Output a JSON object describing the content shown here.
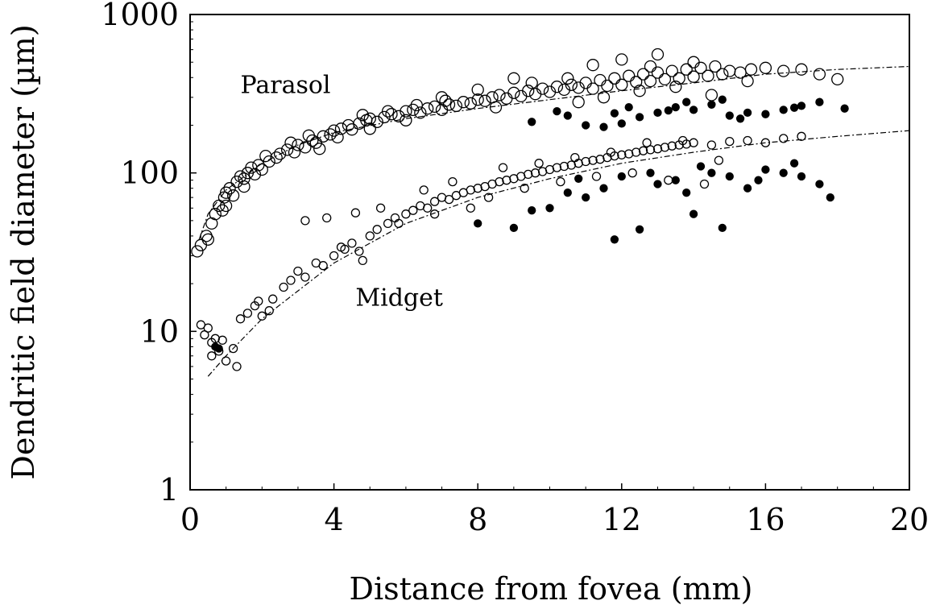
{
  "chart_data": {
    "type": "scatter",
    "title": "",
    "xlabel": "Distance from fovea (mm)",
    "ylabel": "Dendritic field diameter (µm)",
    "xlim": [
      0,
      20
    ],
    "ylim": [
      1,
      1000
    ],
    "yscale": "log",
    "grid": false,
    "legend": "none",
    "x_ticks": [
      0,
      4,
      8,
      12,
      16,
      20
    ],
    "x_tick_labels": [
      "0",
      "4",
      "8",
      "12",
      "16",
      "20"
    ],
    "y_ticks": [
      1,
      10,
      100,
      1000
    ],
    "y_tick_labels": [
      "1",
      "10",
      "100",
      "1000"
    ],
    "annotations": [
      {
        "text": "Parasol",
        "x": 1.4,
        "y": 320
      },
      {
        "text": "Midget",
        "x": 4.6,
        "y": 14.5
      }
    ],
    "series": [
      {
        "name": "Parasol",
        "marker": "open-circle",
        "points": [
          [
            0.2,
            32
          ],
          [
            0.3,
            35
          ],
          [
            0.45,
            40
          ],
          [
            0.5,
            38
          ],
          [
            0.6,
            48
          ],
          [
            0.7,
            55
          ],
          [
            0.8,
            62
          ],
          [
            0.9,
            58
          ],
          [
            0.95,
            70
          ],
          [
            1.0,
            75
          ],
          [
            1.1,
            80
          ],
          [
            1.2,
            72
          ],
          [
            1.3,
            88
          ],
          [
            1.4,
            95
          ],
          [
            1.5,
            92
          ],
          [
            1.6,
            100
          ],
          [
            1.7,
            108
          ],
          [
            1.8,
            98
          ],
          [
            1.9,
            112
          ],
          [
            2.0,
            105
          ],
          [
            2.2,
            118
          ],
          [
            2.4,
            125
          ],
          [
            2.5,
            132
          ],
          [
            2.7,
            140
          ],
          [
            2.9,
            135
          ],
          [
            3.0,
            150
          ],
          [
            3.2,
            145
          ],
          [
            3.4,
            160
          ],
          [
            3.5,
            155
          ],
          [
            3.7,
            170
          ],
          [
            3.9,
            175
          ],
          [
            4.0,
            185
          ],
          [
            4.2,
            190
          ],
          [
            4.4,
            200
          ],
          [
            4.5,
            188
          ],
          [
            4.7,
            205
          ],
          [
            4.9,
            215
          ],
          [
            5.0,
            220
          ],
          [
            5.2,
            210
          ],
          [
            5.4,
            225
          ],
          [
            5.6,
            235
          ],
          [
            5.8,
            228
          ],
          [
            6.0,
            245
          ],
          [
            6.2,
            250
          ],
          [
            6.4,
            240
          ],
          [
            6.6,
            255
          ],
          [
            6.8,
            262
          ],
          [
            7.0,
            250
          ],
          [
            7.2,
            270
          ],
          [
            7.4,
            265
          ],
          [
            7.6,
            280
          ],
          [
            7.8,
            275
          ],
          [
            8.0,
            290
          ],
          [
            8.2,
            285
          ],
          [
            8.4,
            300
          ],
          [
            8.6,
            310
          ],
          [
            8.8,
            295
          ],
          [
            9.0,
            320
          ],
          [
            9.2,
            305
          ],
          [
            9.4,
            330
          ],
          [
            9.6,
            315
          ],
          [
            9.8,
            340
          ],
          [
            10.0,
            325
          ],
          [
            10.2,
            350
          ],
          [
            10.4,
            335
          ],
          [
            10.6,
            360
          ],
          [
            10.8,
            345
          ],
          [
            11.0,
            370
          ],
          [
            11.2,
            340
          ],
          [
            11.4,
            385
          ],
          [
            11.6,
            355
          ],
          [
            11.8,
            395
          ],
          [
            12.0,
            360
          ],
          [
            12.2,
            410
          ],
          [
            12.4,
            375
          ],
          [
            12.6,
            420
          ],
          [
            12.8,
            380
          ],
          [
            13.0,
            430
          ],
          [
            13.2,
            390
          ],
          [
            13.4,
            440
          ],
          [
            13.6,
            395
          ],
          [
            13.8,
            450
          ],
          [
            14.0,
            405
          ],
          [
            14.2,
            460
          ],
          [
            14.4,
            410
          ],
          [
            14.6,
            470
          ],
          [
            14.8,
            420
          ],
          [
            15.0,
            440
          ],
          [
            15.3,
            430
          ],
          [
            15.6,
            450
          ],
          [
            16.0,
            460
          ],
          [
            16.5,
            440
          ],
          [
            17.0,
            450
          ],
          [
            17.5,
            420
          ],
          [
            18.0,
            390
          ],
          [
            1.0,
            62
          ],
          [
            1.5,
            82
          ],
          [
            2.1,
            128
          ],
          [
            2.8,
            155
          ],
          [
            3.3,
            172
          ],
          [
            4.1,
            168
          ],
          [
            4.8,
            232
          ],
          [
            5.5,
            245
          ],
          [
            6.3,
            268
          ],
          [
            7.1,
            285
          ],
          [
            8.5,
            260
          ],
          [
            9.5,
            370
          ],
          [
            10.5,
            395
          ],
          [
            11.5,
            300
          ],
          [
            12.5,
            330
          ],
          [
            13.5,
            350
          ],
          [
            14.5,
            310
          ],
          [
            15.5,
            380
          ],
          [
            10.8,
            280
          ],
          [
            12.0,
            520
          ],
          [
            13.0,
            560
          ],
          [
            11.2,
            480
          ],
          [
            12.8,
            470
          ],
          [
            14.0,
            500
          ],
          [
            9.0,
            395
          ],
          [
            8.0,
            335
          ],
          [
            7.0,
            300
          ],
          [
            6.0,
            215
          ],
          [
            5.0,
            190
          ],
          [
            3.6,
            142
          ]
        ]
      },
      {
        "name": "Parasol (filled)",
        "marker": "filled-circle",
        "points": [
          [
            9.5,
            210
          ],
          [
            10.5,
            230
          ],
          [
            11.0,
            200
          ],
          [
            11.5,
            195
          ],
          [
            12.0,
            205
          ],
          [
            12.5,
            225
          ],
          [
            13.0,
            240
          ],
          [
            13.5,
            260
          ],
          [
            14.0,
            250
          ],
          [
            14.5,
            270
          ],
          [
            15.0,
            230
          ],
          [
            15.5,
            240
          ],
          [
            16.0,
            235
          ],
          [
            16.5,
            250
          ],
          [
            17.0,
            265
          ],
          [
            17.5,
            280
          ],
          [
            18.2,
            255
          ],
          [
            10.2,
            245
          ],
          [
            12.2,
            260
          ],
          [
            13.8,
            280
          ],
          [
            14.8,
            290
          ],
          [
            15.3,
            220
          ],
          [
            16.8,
            258
          ],
          [
            11.8,
            238
          ],
          [
            13.3,
            248
          ]
        ]
      },
      {
        "name": "Midget",
        "marker": "open-circle",
        "points": [
          [
            0.4,
            9.5
          ],
          [
            0.5,
            10.5
          ],
          [
            0.6,
            8.5
          ],
          [
            0.7,
            9.0
          ],
          [
            0.8,
            7.5
          ],
          [
            0.9,
            8.8
          ],
          [
            1.0,
            6.5
          ],
          [
            1.2,
            7.8
          ],
          [
            1.4,
            12.0
          ],
          [
            1.6,
            13.0
          ],
          [
            1.8,
            14.5
          ],
          [
            2.0,
            12.5
          ],
          [
            2.3,
            16.0
          ],
          [
            2.6,
            19.0
          ],
          [
            2.8,
            21.0
          ],
          [
            3.0,
            24.0
          ],
          [
            3.2,
            22.0
          ],
          [
            3.5,
            27.0
          ],
          [
            3.7,
            26.0
          ],
          [
            4.0,
            30.0
          ],
          [
            4.3,
            33.0
          ],
          [
            4.5,
            36.0
          ],
          [
            4.7,
            32.0
          ],
          [
            5.0,
            40.0
          ],
          [
            5.2,
            44.0
          ],
          [
            5.5,
            48.0
          ],
          [
            5.7,
            52.0
          ],
          [
            6.0,
            55.0
          ],
          [
            6.2,
            58.0
          ],
          [
            6.4,
            62.0
          ],
          [
            6.6,
            60.0
          ],
          [
            6.8,
            66.0
          ],
          [
            7.0,
            70.0
          ],
          [
            7.2,
            68.0
          ],
          [
            7.4,
            72.0
          ],
          [
            7.6,
            75.0
          ],
          [
            7.8,
            78.0
          ],
          [
            8.0,
            80.0
          ],
          [
            8.2,
            82.0
          ],
          [
            8.4,
            85.0
          ],
          [
            8.6,
            88.0
          ],
          [
            8.8,
            90.0
          ],
          [
            9.0,
            92.0
          ],
          [
            9.2,
            95.0
          ],
          [
            9.4,
            98.0
          ],
          [
            9.6,
            100.0
          ],
          [
            9.8,
            102.0
          ],
          [
            10.0,
            105.0
          ],
          [
            10.2,
            108.0
          ],
          [
            10.4,
            110.0
          ],
          [
            10.6,
            112.0
          ],
          [
            10.8,
            115.0
          ],
          [
            11.0,
            118.0
          ],
          [
            11.2,
            120.0
          ],
          [
            11.4,
            122.0
          ],
          [
            11.6,
            125.0
          ],
          [
            11.8,
            128.0
          ],
          [
            12.0,
            130.0
          ],
          [
            12.2,
            132.0
          ],
          [
            12.4,
            135.0
          ],
          [
            12.6,
            138.0
          ],
          [
            12.8,
            140.0
          ],
          [
            13.0,
            142.0
          ],
          [
            13.2,
            145.0
          ],
          [
            13.4,
            148.0
          ],
          [
            13.6,
            150.0
          ],
          [
            13.8,
            152.0
          ],
          [
            14.0,
            155.0
          ],
          [
            14.5,
            150.0
          ],
          [
            15.0,
            158.0
          ],
          [
            15.5,
            160.0
          ],
          [
            16.0,
            155.0
          ],
          [
            16.5,
            165.0
          ],
          [
            17.0,
            170.0
          ],
          [
            3.2,
            50.0
          ],
          [
            3.8,
            52.0
          ],
          [
            4.6,
            56.0
          ],
          [
            5.3,
            60.0
          ],
          [
            6.5,
            78.0
          ],
          [
            7.3,
            88.0
          ],
          [
            8.7,
            108.0
          ],
          [
            9.7,
            115.0
          ],
          [
            10.7,
            125.0
          ],
          [
            11.7,
            135.0
          ],
          [
            12.7,
            155.0
          ],
          [
            13.7,
            160.0
          ],
          [
            14.7,
            120.0
          ],
          [
            9.3,
            80.0
          ],
          [
            10.3,
            88.0
          ],
          [
            11.3,
            95.0
          ],
          [
            12.3,
            100.0
          ],
          [
            13.3,
            90.0
          ],
          [
            14.3,
            85.0
          ],
          [
            8.3,
            70.0
          ],
          [
            7.8,
            60.0
          ],
          [
            6.8,
            55.0
          ],
          [
            5.8,
            48.0
          ],
          [
            4.8,
            28.0
          ],
          [
            4.2,
            34.0
          ],
          [
            2.2,
            13.5
          ],
          [
            1.9,
            15.5
          ],
          [
            0.3,
            11.0
          ],
          [
            0.6,
            7.0
          ],
          [
            1.3,
            6.0
          ]
        ]
      },
      {
        "name": "Midget (filled)",
        "marker": "filled-circle",
        "points": [
          [
            0.7,
            8.0
          ],
          [
            0.8,
            7.8
          ],
          [
            8.0,
            48.0
          ],
          [
            9.0,
            45.0
          ],
          [
            10.0,
            60.0
          ],
          [
            10.5,
            75.0
          ],
          [
            11.0,
            70.0
          ],
          [
            11.5,
            80.0
          ],
          [
            11.8,
            38.0
          ],
          [
            12.0,
            95.0
          ],
          [
            12.5,
            44.0
          ],
          [
            13.0,
            85.0
          ],
          [
            13.5,
            90.0
          ],
          [
            14.0,
            55.0
          ],
          [
            14.5,
            100.0
          ],
          [
            14.8,
            45.0
          ],
          [
            15.0,
            95.0
          ],
          [
            15.5,
            80.0
          ],
          [
            16.0,
            105.0
          ],
          [
            16.5,
            100.0
          ],
          [
            17.0,
            95.0
          ],
          [
            17.5,
            85.0
          ],
          [
            17.8,
            70.0
          ],
          [
            9.5,
            58.0
          ],
          [
            10.8,
            92.0
          ],
          [
            12.8,
            100.0
          ],
          [
            13.8,
            75.0
          ],
          [
            15.8,
            90.0
          ],
          [
            14.2,
            110.0
          ],
          [
            16.8,
            115.0
          ]
        ]
      }
    ],
    "trend_lines": [
      {
        "series": "Parasol",
        "points": [
          [
            0.25,
            38
          ],
          [
            0.5,
            55
          ],
          [
            1,
            78
          ],
          [
            2,
            115
          ],
          [
            3,
            150
          ],
          [
            4,
            180
          ],
          [
            6,
            220
          ],
          [
            8,
            255
          ],
          [
            10,
            290
          ],
          [
            12,
            330
          ],
          [
            14,
            370
          ],
          [
            16,
            420
          ],
          [
            18,
            450
          ],
          [
            20,
            470
          ]
        ]
      },
      {
        "series": "Midget",
        "points": [
          [
            0.5,
            5.2
          ],
          [
            1,
            7.0
          ],
          [
            2,
            12
          ],
          [
            3,
            18
          ],
          [
            4,
            27
          ],
          [
            5,
            36
          ],
          [
            6,
            48
          ],
          [
            8,
            70
          ],
          [
            10,
            92
          ],
          [
            12,
            115
          ],
          [
            14,
            135
          ],
          [
            16,
            155
          ],
          [
            18,
            170
          ],
          [
            20,
            185
          ]
        ]
      }
    ]
  }
}
